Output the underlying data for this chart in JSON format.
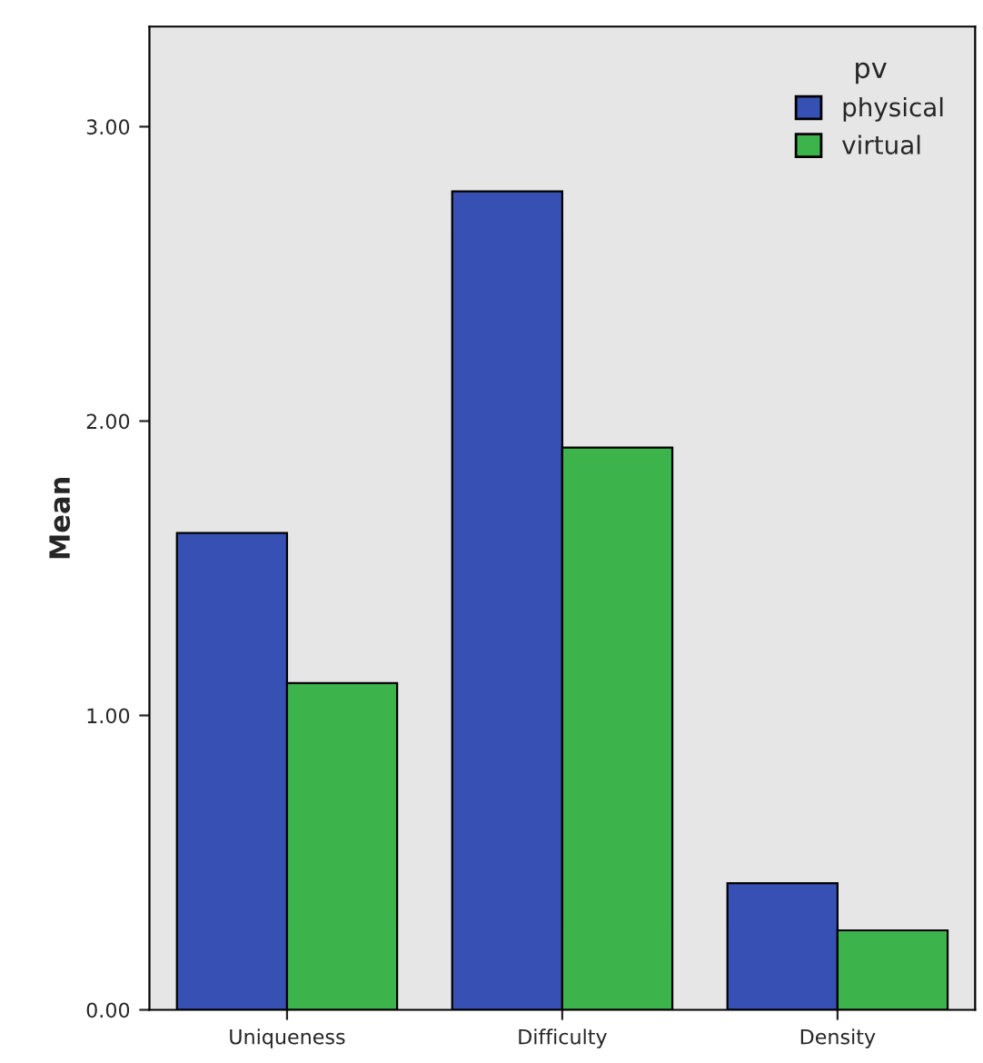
{
  "chart_data": {
    "type": "bar",
    "ylabel": "Mean",
    "legend_title": "pv",
    "legend": "top right",
    "grid": false,
    "categories": [
      "Uniqueness",
      "Difficulty",
      "Density"
    ],
    "series": [
      {
        "name": "physical",
        "color": "#3750b4",
        "values": [
          1.62,
          2.78,
          0.43
        ]
      },
      {
        "name": "virtual",
        "color": "#3cb44b",
        "values": [
          1.11,
          1.91,
          0.27
        ]
      }
    ],
    "ylim": [
      0,
      3.34
    ],
    "yticks": [
      {
        "value": 0,
        "label": "0.00"
      },
      {
        "value": 1,
        "label": "1.00"
      },
      {
        "value": 2,
        "label": "2.00"
      },
      {
        "value": 3,
        "label": "3.00"
      }
    ]
  }
}
